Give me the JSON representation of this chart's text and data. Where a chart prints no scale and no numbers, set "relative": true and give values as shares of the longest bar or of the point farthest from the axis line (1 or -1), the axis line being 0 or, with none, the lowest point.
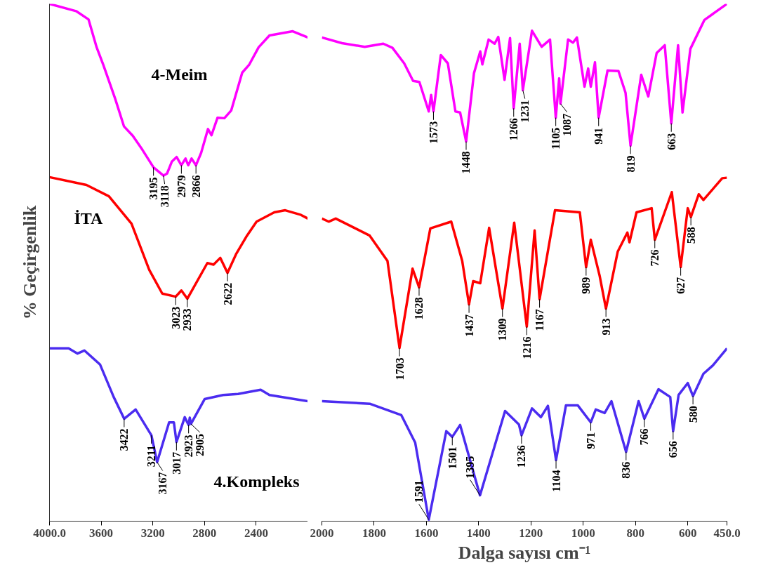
{
  "chart_data": [
    {
      "type": "line",
      "relative": true,
      "ylabel": "% Geçirgenlik",
      "xlim": [
        4000,
        2000
      ],
      "xticks": [
        {
          "value": 4000,
          "label": "4000.0"
        },
        3600,
        3200,
        2800,
        2400
      ],
      "grid": false,
      "marker": "none",
      "line_style": "solid",
      "series": [
        {
          "name": "4-Meim",
          "color": "#ff00ff",
          "x": [
            4000,
            3794,
            3698,
            3635,
            3582,
            3492,
            3423,
            3355,
            3281,
            3195,
            3118,
            3090,
            3053,
            3016,
            2979,
            2947,
            2926,
            2900,
            2866,
            2826,
            2773,
            2746,
            2699,
            2646,
            2593,
            2508,
            2455,
            2381,
            2297,
            2117,
            2000
          ],
          "values": [
            1.0,
            0.986,
            0.97,
            0.916,
            0.881,
            0.817,
            0.763,
            0.745,
            0.718,
            0.684,
            0.668,
            0.672,
            0.695,
            0.704,
            0.688,
            0.701,
            0.688,
            0.701,
            0.688,
            0.712,
            0.758,
            0.746,
            0.78,
            0.779,
            0.794,
            0.867,
            0.882,
            0.916,
            0.939,
            0.947,
            0.935
          ]
        },
        {
          "name": "İTA",
          "color": "#ff0000",
          "x": [
            4000,
            3714,
            3540,
            3365,
            3228,
            3127,
            3023,
            2979,
            2933,
            2778,
            2730,
            2678,
            2622,
            2556,
            2471,
            2397,
            2260,
            2175,
            2053,
            2000
          ],
          "values": [
            0.665,
            0.65,
            0.628,
            0.575,
            0.486,
            0.44,
            0.434,
            0.446,
            0.43,
            0.499,
            0.496,
            0.509,
            0.48,
            0.516,
            0.552,
            0.579,
            0.597,
            0.601,
            0.592,
            0.585
          ]
        },
        {
          "name": "4.Kompleks",
          "color": "#4b2cf0",
          "x": [
            4000,
            3852,
            3783,
            3730,
            3609,
            3503,
            3422,
            3333,
            3211,
            3167,
            3074,
            3037,
            3017,
            2953,
            2923,
            2914,
            2905,
            2799,
            2656,
            2540,
            2365,
            2297,
            2000
          ],
          "values": [
            0.334,
            0.334,
            0.324,
            0.33,
            0.303,
            0.24,
            0.198,
            0.216,
            0.166,
            0.114,
            0.191,
            0.191,
            0.153,
            0.201,
            0.186,
            0.2,
            0.188,
            0.236,
            0.244,
            0.246,
            0.254,
            0.244,
            0.232
          ]
        }
      ],
      "annotations": [
        {
          "text": "3195",
          "x": 3195,
          "y": 0.684
        },
        {
          "text": "3118",
          "x": 3118,
          "y": 0.668
        },
        {
          "text": "2979",
          "x": 2979,
          "y": 0.688
        },
        {
          "text": "2866",
          "x": 2866,
          "y": 0.688
        },
        {
          "text": "3023",
          "x": 3023,
          "y": 0.434
        },
        {
          "text": "2933",
          "x": 2933,
          "y": 0.43
        },
        {
          "text": "2622",
          "x": 2622,
          "y": 0.48
        },
        {
          "text": "3422",
          "x": 3422,
          "y": 0.198
        },
        {
          "text": "3211",
          "x": 3211,
          "y": 0.166
        },
        {
          "text": "3167",
          "x": 3167,
          "y": 0.114
        },
        {
          "text": "3017",
          "x": 3017,
          "y": 0.153
        },
        {
          "text": "2923",
          "x": 2923,
          "y": 0.186
        },
        {
          "text": "2905",
          "x": 2905,
          "y": 0.188
        }
      ]
    },
    {
      "type": "line",
      "relative": true,
      "xlabel": "Dalga sayısı cm⁻¹",
      "xlim": [
        2000,
        450
      ],
      "xticks": [
        2000,
        1800,
        1600,
        1400,
        1200,
        1000,
        800,
        600,
        {
          "value": 450,
          "label": "450.0"
        }
      ],
      "tick_labels": "x",
      "grid": false,
      "marker": "none",
      "line_style": "solid",
      "series": [
        {
          "color": "#ff00ff",
          "x": [
            2000,
            1923,
            1836,
            1765,
            1730,
            1685,
            1651,
            1627,
            1591,
            1582,
            1573,
            1545,
            1518,
            1489,
            1471,
            1448,
            1418,
            1394,
            1386,
            1362,
            1339,
            1325,
            1301,
            1280,
            1266,
            1243,
            1231,
            1196,
            1159,
            1127,
            1105,
            1092,
            1087,
            1058,
            1039,
            1024,
            995,
            981,
            971,
            955,
            941,
            907,
            865,
            838,
            819,
            778,
            751,
            719,
            688,
            663,
            637,
            620,
            590,
            536,
            450
          ],
          "values": [
            0.935,
            0.924,
            0.917,
            0.923,
            0.915,
            0.885,
            0.851,
            0.849,
            0.792,
            0.824,
            0.792,
            0.901,
            0.885,
            0.792,
            0.79,
            0.734,
            0.866,
            0.908,
            0.883,
            0.931,
            0.923,
            0.936,
            0.853,
            0.934,
            0.798,
            0.923,
            0.833,
            0.948,
            0.917,
            0.931,
            0.78,
            0.856,
            0.807,
            0.931,
            0.925,
            0.935,
            0.84,
            0.875,
            0.84,
            0.887,
            0.78,
            0.871,
            0.87,
            0.828,
            0.726,
            0.863,
            0.821,
            0.905,
            0.92,
            0.769,
            0.92,
            0.79,
            0.913,
            0.969,
            1.0
          ]
        },
        {
          "color": "#ff0000",
          "x": [
            2000,
            1974,
            1947,
            1817,
            1749,
            1703,
            1653,
            1628,
            1585,
            1505,
            1463,
            1437,
            1421,
            1394,
            1360,
            1309,
            1264,
            1216,
            1186,
            1167,
            1108,
            1013,
            989,
            971,
            937,
            913,
            868,
            831,
            823,
            796,
            738,
            726,
            661,
            627,
            600,
            588,
            558,
            540,
            468,
            450
          ],
          "values": [
            0.585,
            0.579,
            0.585,
            0.552,
            0.503,
            0.335,
            0.488,
            0.452,
            0.566,
            0.579,
            0.503,
            0.419,
            0.464,
            0.46,
            0.567,
            0.411,
            0.577,
            0.376,
            0.562,
            0.429,
            0.601,
            0.597,
            0.491,
            0.544,
            0.474,
            0.411,
            0.521,
            0.558,
            0.539,
            0.597,
            0.605,
            0.544,
            0.636,
            0.491,
            0.605,
            0.588,
            0.632,
            0.621,
            0.663,
            0.664
          ]
        },
        {
          "color": "#4b2cf0",
          "x": [
            2000,
            1817,
            1696,
            1643,
            1591,
            1524,
            1501,
            1471,
            1395,
            1299,
            1246,
            1236,
            1196,
            1162,
            1135,
            1104,
            1066,
            1021,
            971,
            952,
            918,
            892,
            836,
            788,
            766,
            712,
            667,
            656,
            635,
            600,
            580,
            540,
            504,
            450
          ],
          "values": [
            0.232,
            0.227,
            0.205,
            0.152,
            0.003,
            0.174,
            0.163,
            0.186,
            0.05,
            0.213,
            0.187,
            0.166,
            0.218,
            0.201,
            0.223,
            0.118,
            0.224,
            0.224,
            0.191,
            0.216,
            0.209,
            0.232,
            0.134,
            0.232,
            0.198,
            0.255,
            0.24,
            0.174,
            0.244,
            0.267,
            0.242,
            0.285,
            0.301,
            0.334
          ]
        }
      ],
      "annotations": [
        {
          "text": "1573",
          "x": 1573,
          "y": 0.792
        },
        {
          "text": "1448",
          "x": 1448,
          "y": 0.734
        },
        {
          "text": "1266",
          "x": 1266,
          "y": 0.798
        },
        {
          "text": "1231",
          "x": 1231,
          "y": 0.833
        },
        {
          "text": "1105",
          "x": 1105,
          "y": 0.78
        },
        {
          "text": "1087",
          "x": 1087,
          "y": 0.807
        },
        {
          "text": "941",
          "x": 941,
          "y": 0.78
        },
        {
          "text": "819",
          "x": 819,
          "y": 0.726
        },
        {
          "text": "663",
          "x": 663,
          "y": 0.769
        },
        {
          "text": "1703",
          "x": 1703,
          "y": 0.335
        },
        {
          "text": "1628",
          "x": 1628,
          "y": 0.452
        },
        {
          "text": "1437",
          "x": 1437,
          "y": 0.419
        },
        {
          "text": "1309",
          "x": 1309,
          "y": 0.411
        },
        {
          "text": "1216",
          "x": 1216,
          "y": 0.376
        },
        {
          "text": "1167",
          "x": 1167,
          "y": 0.429
        },
        {
          "text": "989",
          "x": 989,
          "y": 0.491
        },
        {
          "text": "913",
          "x": 913,
          "y": 0.411
        },
        {
          "text": "726",
          "x": 726,
          "y": 0.544
        },
        {
          "text": "627",
          "x": 627,
          "y": 0.491
        },
        {
          "text": "588",
          "x": 588,
          "y": 0.588
        },
        {
          "text": "1591",
          "x": 1591,
          "y": 0.003
        },
        {
          "text": "1501",
          "x": 1501,
          "y": 0.163
        },
        {
          "text": "1395",
          "x": 1395,
          "y": 0.05
        },
        {
          "text": "1236",
          "x": 1236,
          "y": 0.166
        },
        {
          "text": "1104",
          "x": 1104,
          "y": 0.118
        },
        {
          "text": "971",
          "x": 971,
          "y": 0.191
        },
        {
          "text": "836",
          "x": 836,
          "y": 0.134
        },
        {
          "text": "766",
          "x": 766,
          "y": 0.198
        },
        {
          "text": "656",
          "x": 656,
          "y": 0.174
        },
        {
          "text": "580",
          "x": 580,
          "y": 0.242
        }
      ]
    }
  ]
}
